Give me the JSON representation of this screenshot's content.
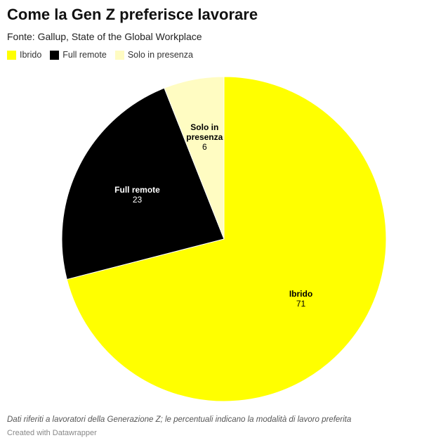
{
  "chart_data": {
    "type": "pie",
    "title": "Come la Gen Z preferisce lavorare",
    "subtitle": "Fonte: Gallup, State of the Global Workplace",
    "legend_position": "top-left",
    "slices": [
      {
        "label": "Ibrido",
        "value": 71,
        "color": "#ffff00",
        "text_color": "#000000"
      },
      {
        "label": "Full remote",
        "value": 23,
        "color": "#000000",
        "text_color": "#ffffff"
      },
      {
        "label": "Solo in presenza",
        "value": 6,
        "color": "#fffcc2",
        "text_color": "#000000"
      }
    ]
  },
  "notes": "Dati riferiti a lavoratori della Generazione Z; le percentuali indicano la modalità di lavoro preferita",
  "credit": "Created with Datawrapper"
}
